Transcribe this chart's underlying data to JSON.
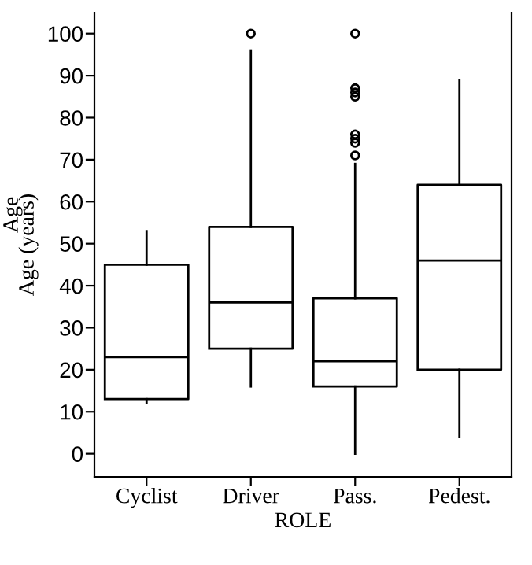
{
  "chart_data": {
    "type": "box",
    "xlabel": "ROLE",
    "ylabel": "Age (years)",
    "annotations": [
      "Age"
    ],
    "categories": [
      "Cyclist",
      "Driver",
      "Pass.",
      "Pedest."
    ],
    "boxes": [
      {
        "low": 12,
        "q1": 13,
        "median": 23,
        "q3": 45,
        "high": 53
      },
      {
        "low": 16,
        "q1": 25,
        "median": 36,
        "q3": 54,
        "high": 96,
        "outliers": [
          100
        ]
      },
      {
        "low": 0,
        "q1": 16,
        "median": 22,
        "q3": 37,
        "high": 69,
        "outliers": [
          100,
          87,
          86,
          85,
          76,
          75,
          74,
          71
        ]
      },
      {
        "low": 4,
        "q1": 20,
        "median": 46,
        "q3": 64,
        "high": 89
      }
    ],
    "color": "#000000",
    "ylim": [
      -5.5,
      105
    ],
    "yticks": [
      0,
      10,
      20,
      30,
      40,
      50,
      60,
      70,
      80,
      90,
      100
    ],
    "grid": false
  }
}
